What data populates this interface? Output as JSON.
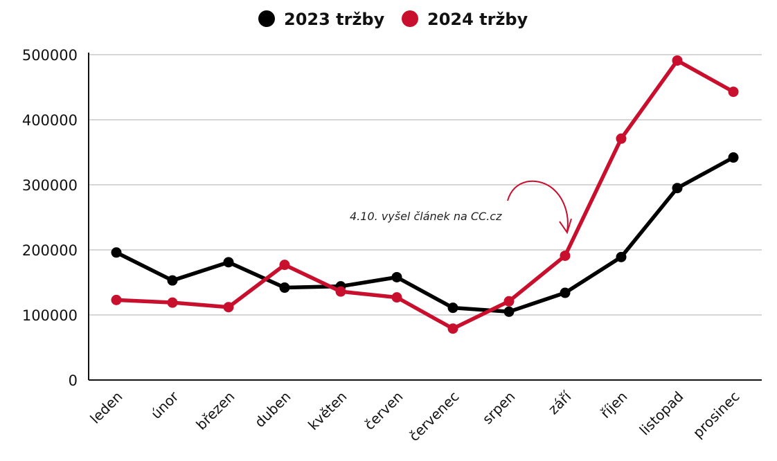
{
  "chart_data": {
    "type": "line",
    "title": "",
    "xlabel": "",
    "ylabel": "",
    "ylim": [
      0,
      500000
    ],
    "yticks": [
      "0",
      "100000",
      "200000",
      "300000",
      "400000",
      "500000"
    ],
    "categories": [
      "leden",
      "únor",
      "březen",
      "duben",
      "květen",
      "červen",
      "červenec",
      "srpen",
      "září",
      "říjen",
      "listopad",
      "prosinec"
    ],
    "series": [
      {
        "name": "2023 tržby",
        "color": "#000000",
        "values": [
          196000,
          153000,
          181000,
          142000,
          144000,
          158000,
          111000,
          105000,
          134000,
          189000,
          295000,
          342000
        ]
      },
      {
        "name": "2024 tržby",
        "color": "#c8102e",
        "values": [
          123000,
          119000,
          112000,
          177000,
          136000,
          127000,
          79000,
          121000,
          191000,
          371000,
          491000,
          443000
        ]
      }
    ],
    "legend": "top-center",
    "grid": true,
    "annotation": {
      "text": "4.10. vyšel článek na CC.cz",
      "target_category": "září",
      "target_series": "2024 tržby"
    }
  }
}
